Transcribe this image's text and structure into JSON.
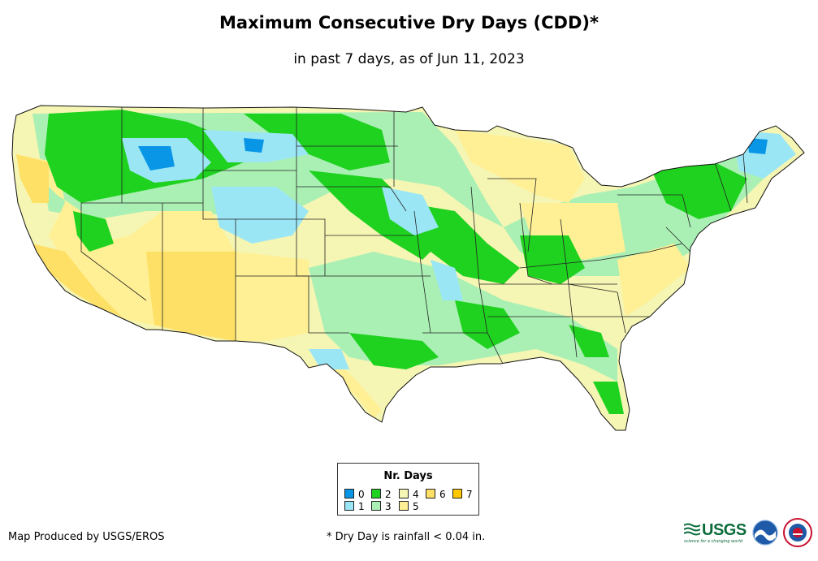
{
  "title": "Maximum Consecutive Dry Days (CDD)*",
  "subtitle": "in past 7 days, as of Jun 11, 2023",
  "legend": {
    "title": "Nr. Days",
    "items": [
      {
        "label": "0",
        "color": "#0a96e6"
      },
      {
        "label": "1",
        "color": "#9be6f5"
      },
      {
        "label": "2",
        "color": "#1fd21f"
      },
      {
        "label": "3",
        "color": "#aaf0b4"
      },
      {
        "label": "4",
        "color": "#f5f5b4"
      },
      {
        "label": "5",
        "color": "#fff096"
      },
      {
        "label": "6",
        "color": "#ffe066"
      },
      {
        "label": "7",
        "color": "#ffc800"
      }
    ]
  },
  "footer": {
    "credit": "Map Produced by USGS/EROS",
    "note": "* Dry Day is rainfall < 0.04 in."
  },
  "logos": {
    "usgs": "USGS",
    "usgs_tagline": "science for a changing world"
  }
}
